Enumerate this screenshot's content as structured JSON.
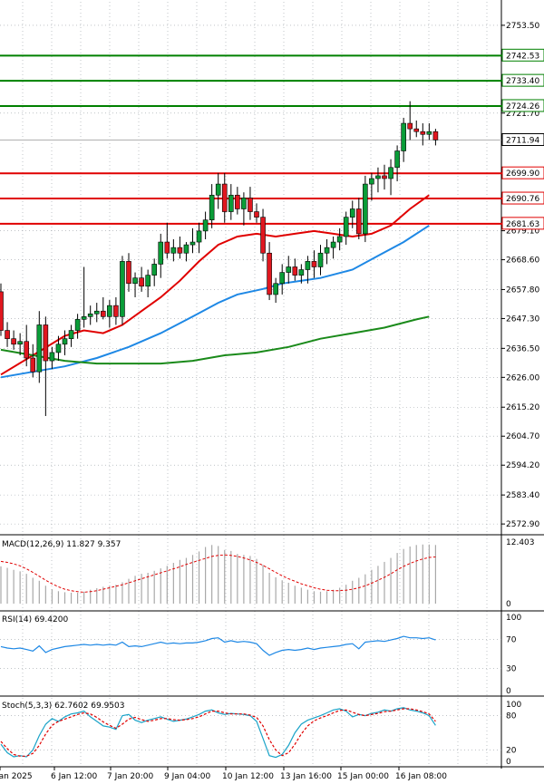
{
  "chart_data": [
    {
      "type": "candlestick",
      "y_ticks": [
        2753.5,
        2742.53,
        2733.4,
        2724.26,
        2721.7,
        2711.94,
        2699.9,
        2690.76,
        2681.63,
        2679.1,
        2668.6,
        2657.8,
        2647.3,
        2636.5,
        2626.0,
        2615.2,
        2604.7,
        2594.2,
        2583.4,
        2572.9
      ],
      "ylim": [
        2569,
        2762
      ],
      "x_tick_labels": [
        "Jan 2025",
        "6 Jan 12:00",
        "7 Jan 20:00",
        "9 Jan 04:00",
        "10 Jan 12:00",
        "13 Jan 16:00",
        "15 Jan 00:00",
        "16 Jan 08:00"
      ],
      "levels": [
        {
          "value": 2742.53,
          "label": "2742.53",
          "color": "#008000"
        },
        {
          "value": 2733.4,
          "label": "2733.40",
          "color": "#008000"
        },
        {
          "value": 2724.26,
          "label": "2724.26",
          "color": "#008000"
        },
        {
          "value": 2699.9,
          "label": "2699.90",
          "color": "#e00000"
        },
        {
          "value": 2690.76,
          "label": "2690.76",
          "color": "#e00000"
        },
        {
          "value": 2681.63,
          "label": "2681.63",
          "color": "#e00000"
        }
      ],
      "current_price": {
        "value": 2711.94,
        "label": "2711.94"
      },
      "candles": [
        {
          "o": 2657,
          "h": 2660,
          "l": 2641,
          "c": 2643
        },
        {
          "o": 2643,
          "h": 2646,
          "l": 2637,
          "c": 2640
        },
        {
          "o": 2640,
          "h": 2643,
          "l": 2636,
          "c": 2638
        },
        {
          "o": 2638,
          "h": 2642,
          "l": 2634,
          "c": 2639
        },
        {
          "o": 2639,
          "h": 2645,
          "l": 2630,
          "c": 2633
        },
        {
          "o": 2633,
          "h": 2638,
          "l": 2626,
          "c": 2628
        },
        {
          "o": 2628,
          "h": 2650,
          "l": 2624,
          "c": 2645
        },
        {
          "o": 2645,
          "h": 2648,
          "l": 2612,
          "c": 2632
        },
        {
          "o": 2632,
          "h": 2637,
          "l": 2629,
          "c": 2635
        },
        {
          "o": 2635,
          "h": 2641,
          "l": 2632,
          "c": 2638
        },
        {
          "o": 2638,
          "h": 2643,
          "l": 2634,
          "c": 2640
        },
        {
          "o": 2640,
          "h": 2645,
          "l": 2637,
          "c": 2643
        },
        {
          "o": 2643,
          "h": 2649,
          "l": 2640,
          "c": 2647
        },
        {
          "o": 2647,
          "h": 2666,
          "l": 2644,
          "c": 2648
        },
        {
          "o": 2648,
          "h": 2652,
          "l": 2645,
          "c": 2649
        },
        {
          "o": 2649,
          "h": 2653,
          "l": 2646,
          "c": 2650
        },
        {
          "o": 2650,
          "h": 2655,
          "l": 2647,
          "c": 2648
        },
        {
          "o": 2648,
          "h": 2654,
          "l": 2644,
          "c": 2652
        },
        {
          "o": 2652,
          "h": 2655,
          "l": 2645,
          "c": 2648
        },
        {
          "o": 2648,
          "h": 2670,
          "l": 2645,
          "c": 2668
        },
        {
          "o": 2668,
          "h": 2671,
          "l": 2657,
          "c": 2660
        },
        {
          "o": 2660,
          "h": 2664,
          "l": 2655,
          "c": 2662
        },
        {
          "o": 2662,
          "h": 2666,
          "l": 2657,
          "c": 2659
        },
        {
          "o": 2659,
          "h": 2665,
          "l": 2655,
          "c": 2663
        },
        {
          "o": 2663,
          "h": 2669,
          "l": 2659,
          "c": 2667
        },
        {
          "o": 2667,
          "h": 2678,
          "l": 2662,
          "c": 2675
        },
        {
          "o": 2675,
          "h": 2682,
          "l": 2669,
          "c": 2671
        },
        {
          "o": 2671,
          "h": 2676,
          "l": 2668,
          "c": 2673
        },
        {
          "o": 2673,
          "h": 2677,
          "l": 2669,
          "c": 2671
        },
        {
          "o": 2671,
          "h": 2675,
          "l": 2668,
          "c": 2674
        },
        {
          "o": 2674,
          "h": 2680,
          "l": 2671,
          "c": 2675
        },
        {
          "o": 2675,
          "h": 2682,
          "l": 2671,
          "c": 2679
        },
        {
          "o": 2679,
          "h": 2686,
          "l": 2676,
          "c": 2683
        },
        {
          "o": 2683,
          "h": 2696,
          "l": 2680,
          "c": 2692
        },
        {
          "o": 2692,
          "h": 2700,
          "l": 2687,
          "c": 2696
        },
        {
          "o": 2696,
          "h": 2700,
          "l": 2682,
          "c": 2686
        },
        {
          "o": 2686,
          "h": 2696,
          "l": 2683,
          "c": 2692
        },
        {
          "o": 2692,
          "h": 2695,
          "l": 2685,
          "c": 2687
        },
        {
          "o": 2687,
          "h": 2693,
          "l": 2681,
          "c": 2691
        },
        {
          "o": 2691,
          "h": 2695,
          "l": 2683,
          "c": 2686
        },
        {
          "o": 2686,
          "h": 2689,
          "l": 2682,
          "c": 2684
        },
        {
          "o": 2684,
          "h": 2687,
          "l": 2668,
          "c": 2671
        },
        {
          "o": 2671,
          "h": 2675,
          "l": 2654,
          "c": 2656
        },
        {
          "o": 2656,
          "h": 2662,
          "l": 2653,
          "c": 2660
        },
        {
          "o": 2660,
          "h": 2667,
          "l": 2656,
          "c": 2664
        },
        {
          "o": 2664,
          "h": 2670,
          "l": 2660,
          "c": 2666
        },
        {
          "o": 2666,
          "h": 2669,
          "l": 2661,
          "c": 2663
        },
        {
          "o": 2663,
          "h": 2667,
          "l": 2660,
          "c": 2665
        },
        {
          "o": 2665,
          "h": 2670,
          "l": 2660,
          "c": 2668
        },
        {
          "o": 2668,
          "h": 2672,
          "l": 2662,
          "c": 2666
        },
        {
          "o": 2666,
          "h": 2674,
          "l": 2663,
          "c": 2671
        },
        {
          "o": 2671,
          "h": 2676,
          "l": 2667,
          "c": 2673
        },
        {
          "o": 2673,
          "h": 2677,
          "l": 2669,
          "c": 2675
        },
        {
          "o": 2675,
          "h": 2680,
          "l": 2672,
          "c": 2677
        },
        {
          "o": 2677,
          "h": 2686,
          "l": 2674,
          "c": 2684
        },
        {
          "o": 2684,
          "h": 2690,
          "l": 2680,
          "c": 2687
        },
        {
          "o": 2687,
          "h": 2691,
          "l": 2676,
          "c": 2678
        },
        {
          "o": 2678,
          "h": 2699,
          "l": 2675,
          "c": 2696
        },
        {
          "o": 2696,
          "h": 2700,
          "l": 2690,
          "c": 2698
        },
        {
          "o": 2698,
          "h": 2702,
          "l": 2693,
          "c": 2699
        },
        {
          "o": 2699,
          "h": 2703,
          "l": 2694,
          "c": 2698
        },
        {
          "o": 2698,
          "h": 2705,
          "l": 2692,
          "c": 2702
        },
        {
          "o": 2702,
          "h": 2710,
          "l": 2697,
          "c": 2708
        },
        {
          "o": 2708,
          "h": 2720,
          "l": 2704,
          "c": 2718
        },
        {
          "o": 2718,
          "h": 2726,
          "l": 2712,
          "c": 2716
        },
        {
          "o": 2716,
          "h": 2719,
          "l": 2713,
          "c": 2715
        },
        {
          "o": 2715,
          "h": 2718,
          "l": 2710,
          "c": 2714
        },
        {
          "o": 2714,
          "h": 2718,
          "l": 2712,
          "c": 2715
        },
        {
          "o": 2715,
          "h": 2716,
          "l": 2710,
          "c": 2712
        }
      ],
      "ma_series": [
        {
          "name": "",
          "color": "#e00000",
          "values": [
            [
              0,
              2627
            ],
            [
              5,
              2634
            ],
            [
              10,
              2641
            ],
            [
              13,
              2643
            ],
            [
              16,
              2642
            ],
            [
              19,
              2645
            ],
            [
              22,
              2650
            ],
            [
              25,
              2655
            ],
            [
              28,
              2661
            ],
            [
              31,
              2668
            ],
            [
              34,
              2674
            ],
            [
              37,
              2677
            ],
            [
              40,
              2678
            ],
            [
              43,
              2677
            ],
            [
              46,
              2678
            ],
            [
              49,
              2679
            ],
            [
              52,
              2678
            ],
            [
              55,
              2677
            ],
            [
              58,
              2678
            ],
            [
              61,
              2681
            ],
            [
              64,
              2687
            ],
            [
              67,
              2692
            ]
          ]
        },
        {
          "name": "",
          "color": "#1e88e5",
          "values": [
            [
              0,
              2626
            ],
            [
              5,
              2628
            ],
            [
              10,
              2630
            ],
            [
              15,
              2633
            ],
            [
              20,
              2637
            ],
            [
              25,
              2642
            ],
            [
              30,
              2648
            ],
            [
              34,
              2653
            ],
            [
              37,
              2656
            ],
            [
              41,
              2658
            ],
            [
              44,
              2660
            ],
            [
              47,
              2661
            ],
            [
              50,
              2662
            ],
            [
              55,
              2665
            ],
            [
              59,
              2670
            ],
            [
              63,
              2675
            ],
            [
              67,
              2681
            ]
          ]
        },
        {
          "name": "",
          "color": "#1a8a1a",
          "values": [
            [
              0,
              2636
            ],
            [
              5,
              2634
            ],
            [
              10,
              2632
            ],
            [
              15,
              2631
            ],
            [
              20,
              2631
            ],
            [
              25,
              2631
            ],
            [
              30,
              2632
            ],
            [
              35,
              2634
            ],
            [
              40,
              2635
            ],
            [
              45,
              2637
            ],
            [
              50,
              2640
            ],
            [
              55,
              2642
            ],
            [
              60,
              2644
            ],
            [
              65,
              2647
            ],
            [
              67,
              2648
            ]
          ]
        }
      ]
    },
    {
      "type": "bar",
      "title": "MACD(12,26,9) 11.827 9.357",
      "ylim": [
        0,
        12.403
      ],
      "y_ticks": [
        12.403,
        0
      ],
      "y_tick_labels": [
        "12.403",
        "0"
      ],
      "histogram": [
        7.5,
        7.2,
        6.8,
        6.5,
        6.0,
        5.2,
        4.6,
        3.6,
        2.9,
        2.5,
        2.3,
        2.2,
        2.2,
        2.4,
        2.8,
        3.1,
        3.4,
        3.6,
        3.8,
        4.3,
        5.0,
        5.6,
        6.0,
        6.2,
        6.6,
        7.1,
        7.6,
        8.2,
        8.8,
        9.2,
        9.8,
        10.5,
        11.4,
        11.8,
        11.6,
        10.8,
        10.6,
        10.0,
        9.8,
        9.6,
        9.0,
        7.8,
        6.2,
        5.3,
        4.7,
        4.2,
        3.6,
        3.2,
        2.8,
        2.5,
        2.4,
        2.5,
        2.8,
        3.2,
        3.8,
        4.6,
        5.2,
        5.9,
        6.8,
        7.6,
        8.4,
        9.2,
        10.2,
        11.0,
        11.5,
        11.8,
        11.9,
        11.9,
        11.8
      ],
      "signal": [
        8.5,
        8.3,
        8.0,
        7.6,
        7.0,
        6.3,
        5.5,
        4.7,
        4.0,
        3.4,
        2.9,
        2.6,
        2.4,
        2.3,
        2.4,
        2.6,
        2.9,
        3.2,
        3.5,
        3.8,
        4.2,
        4.6,
        5.0,
        5.4,
        5.8,
        6.2,
        6.6,
        7.0,
        7.4,
        7.9,
        8.3,
        8.7,
        9.1,
        9.5,
        9.7,
        9.8,
        9.7,
        9.5,
        9.2,
        8.8,
        8.3,
        7.7,
        7.0,
        6.3,
        5.6,
        5.0,
        4.5,
        4.0,
        3.6,
        3.2,
        2.9,
        2.7,
        2.6,
        2.6,
        2.7,
        2.9,
        3.2,
        3.6,
        4.1,
        4.7,
        5.3,
        6.0,
        6.8,
        7.5,
        8.1,
        8.6,
        9.0,
        9.3,
        9.4
      ]
    },
    {
      "type": "line",
      "title": "RSI(14) 69.4200",
      "ylim": [
        0,
        100
      ],
      "y_ticks": [
        100,
        70,
        30,
        0
      ],
      "y_tick_labels": [
        "100",
        "70",
        "30",
        "0"
      ],
      "values": [
        60,
        58,
        57,
        58,
        56,
        54,
        61,
        52,
        56,
        58,
        60,
        61,
        62,
        63,
        62,
        63,
        62,
        63,
        62,
        66,
        60,
        61,
        60,
        62,
        64,
        66,
        64,
        65,
        64,
        65,
        65,
        66,
        68,
        71,
        72,
        66,
        68,
        66,
        67,
        66,
        64,
        55,
        48,
        52,
        55,
        56,
        55,
        56,
        58,
        56,
        58,
        59,
        60,
        61,
        63,
        64,
        57,
        66,
        67,
        68,
        67,
        69,
        71,
        74,
        72,
        72,
        71,
        72,
        69
      ]
    },
    {
      "type": "line",
      "title": "Stoch(5,3,3) 62.7602 69.9503",
      "ylim": [
        0,
        100
      ],
      "y_ticks": [
        100,
        80,
        20,
        0
      ],
      "y_tick_labels": [
        "100",
        "80",
        "20",
        "0"
      ],
      "series": [
        {
          "name": "",
          "values": [
            30,
            15,
            8,
            10,
            8,
            20,
            45,
            65,
            75,
            70,
            78,
            83,
            85,
            88,
            78,
            70,
            62,
            60,
            56,
            80,
            82,
            72,
            68,
            72,
            75,
            78,
            74,
            70,
            72,
            74,
            78,
            82,
            88,
            90,
            85,
            82,
            84,
            83,
            82,
            80,
            70,
            40,
            10,
            7,
            12,
            28,
            50,
            65,
            72,
            76,
            80,
            85,
            90,
            92,
            88,
            78,
            82,
            80,
            84,
            86,
            90,
            88,
            92,
            94,
            90,
            88,
            85,
            80,
            63
          ]
        },
        {
          "name": "",
          "values": [
            35,
            22,
            12,
            9,
            9,
            14,
            28,
            48,
            63,
            70,
            74,
            78,
            82,
            85,
            83,
            77,
            69,
            63,
            58,
            65,
            74,
            77,
            73,
            70,
            72,
            75,
            75,
            73,
            72,
            73,
            75,
            78,
            83,
            88,
            88,
            85,
            83,
            83,
            83,
            81,
            77,
            62,
            38,
            20,
            10,
            15,
            30,
            48,
            62,
            71,
            76,
            80,
            85,
            89,
            90,
            86,
            82,
            80,
            82,
            84,
            87,
            88,
            90,
            92,
            92,
            90,
            87,
            83,
            70
          ]
        }
      ]
    }
  ]
}
